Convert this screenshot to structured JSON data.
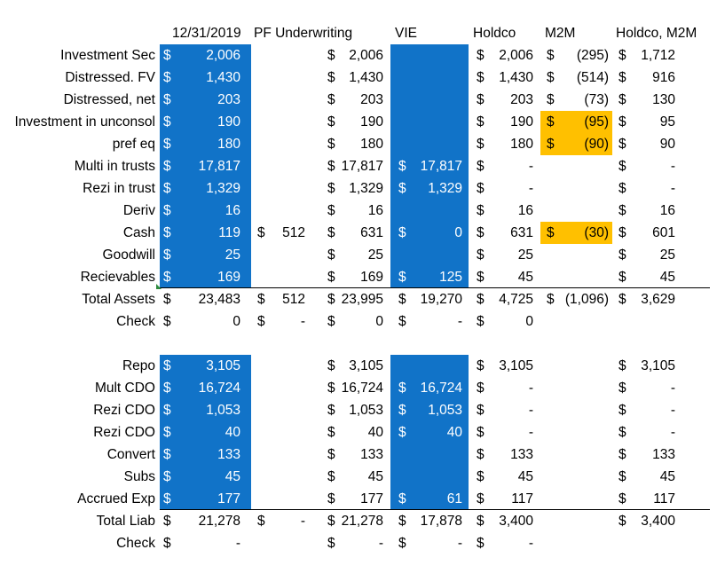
{
  "headers": [
    {
      "id": "date",
      "text": "12/31/2019"
    },
    {
      "id": "pf",
      "text": "PF Underwriting"
    },
    {
      "id": "vie",
      "text": "VIE"
    },
    {
      "id": "holdco",
      "text": "Holdco"
    },
    {
      "id": "m2m",
      "text": "M2M"
    },
    {
      "id": "holdcom2m",
      "text": "Holdco, M2M"
    }
  ],
  "highlight_colors": {
    "blue": "#1173C8",
    "yellow": "#FFC000"
  },
  "assets": [
    {
      "label": "Investment Sec",
      "cells": [
        [
          "$",
          "2,006"
        ],
        null,
        [
          "$",
          "2,006"
        ],
        null,
        [
          "$",
          "2,006"
        ],
        [
          "$",
          "(295)"
        ],
        [
          "$",
          "1,712"
        ]
      ]
    },
    {
      "label": "Distressed. FV",
      "cells": [
        [
          "$",
          "1,430"
        ],
        null,
        [
          "$",
          "1,430"
        ],
        null,
        [
          "$",
          "1,430"
        ],
        [
          "$",
          "(514)"
        ],
        [
          "$",
          "916"
        ]
      ]
    },
    {
      "label": "Distressed, net",
      "cells": [
        [
          "$",
          "203"
        ],
        null,
        [
          "$",
          "203"
        ],
        null,
        [
          "$",
          "203"
        ],
        [
          "$",
          "(73)"
        ],
        [
          "$",
          "130"
        ]
      ]
    },
    {
      "label": "Investment in unconsol",
      "cells": [
        [
          "$",
          "190"
        ],
        null,
        [
          "$",
          "190"
        ],
        null,
        [
          "$",
          "190"
        ],
        [
          "$",
          "(95)"
        ],
        [
          "$",
          "95"
        ]
      ]
    },
    {
      "label": "pref eq",
      "cells": [
        [
          "$",
          "180"
        ],
        null,
        [
          "$",
          "180"
        ],
        null,
        [
          "$",
          "180"
        ],
        [
          "$",
          "(90)"
        ],
        [
          "$",
          "90"
        ]
      ]
    },
    {
      "label": "Multi in trusts",
      "cells": [
        [
          "$",
          "17,817"
        ],
        null,
        [
          "$",
          "17,817"
        ],
        [
          "$",
          "17,817"
        ],
        [
          "$",
          "-"
        ],
        null,
        [
          "$",
          "-"
        ]
      ]
    },
    {
      "label": "Rezi in trust",
      "cells": [
        [
          "$",
          "1,329"
        ],
        null,
        [
          "$",
          "1,329"
        ],
        [
          "$",
          "1,329"
        ],
        [
          "$",
          "-"
        ],
        null,
        [
          "$",
          "-"
        ]
      ]
    },
    {
      "label": "Deriv",
      "cells": [
        [
          "$",
          "16"
        ],
        null,
        [
          "$",
          "16"
        ],
        null,
        [
          "$",
          "16"
        ],
        null,
        [
          "$",
          "16"
        ]
      ]
    },
    {
      "label": "Cash",
      "cells": [
        [
          "$",
          "119"
        ],
        [
          "$",
          "512"
        ],
        [
          "$",
          "631"
        ],
        [
          "$",
          "0"
        ],
        [
          "$",
          "631"
        ],
        [
          "$",
          "(30)"
        ],
        [
          "$",
          "601"
        ]
      ]
    },
    {
      "label": "Goodwill",
      "cells": [
        [
          "$",
          "25"
        ],
        null,
        [
          "$",
          "25"
        ],
        null,
        [
          "$",
          "25"
        ],
        null,
        [
          "$",
          "25"
        ]
      ]
    },
    {
      "label": "Recievables",
      "cells": [
        [
          "$",
          "169"
        ],
        null,
        [
          "$",
          "169"
        ],
        [
          "$",
          "125"
        ],
        [
          "$",
          "45"
        ],
        null,
        [
          "$",
          "45"
        ]
      ]
    },
    {
      "label": "Total Assets",
      "cells": [
        [
          "$",
          "23,483"
        ],
        [
          "$",
          "512"
        ],
        [
          "$",
          "23,995"
        ],
        [
          "$",
          "19,270"
        ],
        [
          "$",
          "4,725"
        ],
        [
          "$",
          "(1,096)"
        ],
        [
          "$",
          "3,629"
        ]
      ]
    },
    {
      "label": "Check",
      "cells": [
        [
          "$",
          "0"
        ],
        [
          "$",
          "-"
        ],
        [
          "$",
          "0"
        ],
        [
          "$",
          "-"
        ],
        [
          "$",
          "0"
        ],
        null,
        null
      ]
    }
  ],
  "liabilities": [
    {
      "label": "Repo",
      "cells": [
        [
          "$",
          "3,105"
        ],
        null,
        [
          "$",
          "3,105"
        ],
        null,
        [
          "$",
          "3,105"
        ],
        null,
        [
          "$",
          "3,105"
        ]
      ]
    },
    {
      "label": "Mult CDO",
      "cells": [
        [
          "$",
          "16,724"
        ],
        null,
        [
          "$",
          "16,724"
        ],
        [
          "$",
          "16,724"
        ],
        [
          "$",
          "-"
        ],
        null,
        [
          "$",
          "-"
        ]
      ]
    },
    {
      "label": "Rezi CDO",
      "cells": [
        [
          "$",
          "1,053"
        ],
        null,
        [
          "$",
          "1,053"
        ],
        [
          "$",
          "1,053"
        ],
        [
          "$",
          "-"
        ],
        null,
        [
          "$",
          "-"
        ]
      ]
    },
    {
      "label": "Rezi CDO",
      "cells": [
        [
          "$",
          "40"
        ],
        null,
        [
          "$",
          "40"
        ],
        [
          "$",
          "40"
        ],
        [
          "$",
          "-"
        ],
        null,
        [
          "$",
          "-"
        ]
      ]
    },
    {
      "label": "Convert",
      "cells": [
        [
          "$",
          "133"
        ],
        null,
        [
          "$",
          "133"
        ],
        null,
        [
          "$",
          "133"
        ],
        null,
        [
          "$",
          "133"
        ]
      ]
    },
    {
      "label": "Subs",
      "cells": [
        [
          "$",
          "45"
        ],
        null,
        [
          "$",
          "45"
        ],
        null,
        [
          "$",
          "45"
        ],
        null,
        [
          "$",
          "45"
        ]
      ]
    },
    {
      "label": "Accrued Exp",
      "cells": [
        [
          "$",
          "177"
        ],
        null,
        [
          "$",
          "177"
        ],
        [
          "$",
          "61"
        ],
        [
          "$",
          "117"
        ],
        null,
        [
          "$",
          "117"
        ]
      ]
    },
    {
      "label": "Total Liab",
      "cells": [
        [
          "$",
          "21,278"
        ],
        [
          "$",
          "-"
        ],
        [
          "$",
          "21,278"
        ],
        [
          "$",
          "17,878"
        ],
        [
          "$",
          "3,400"
        ],
        null,
        [
          "$",
          "3,400"
        ]
      ]
    },
    {
      "label": "Check",
      "cells": [
        [
          "$",
          "-"
        ],
        null,
        [
          "$",
          "-"
        ],
        [
          "$",
          "-"
        ],
        [
          "$",
          "-"
        ],
        null,
        null
      ]
    }
  ]
}
